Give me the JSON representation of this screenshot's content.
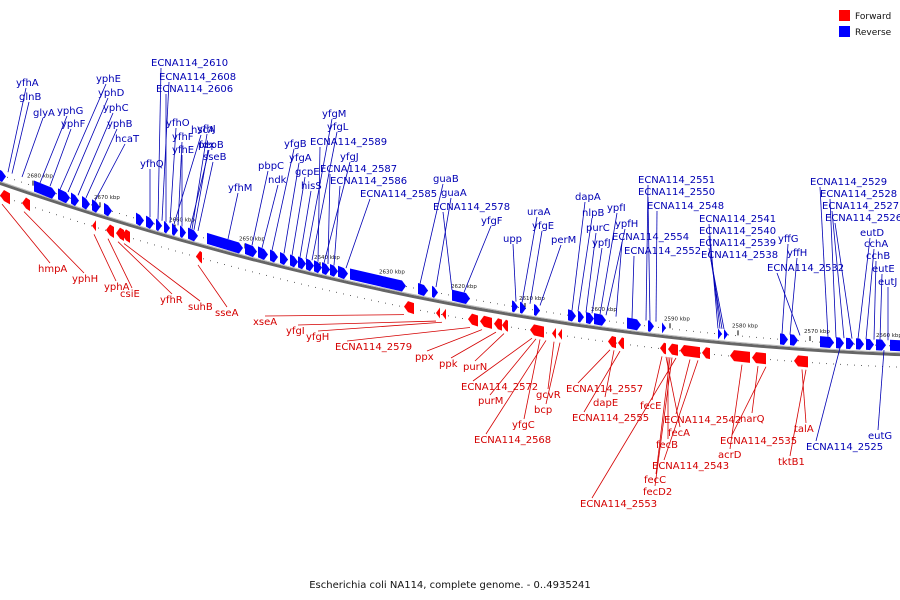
{
  "caption": "Escherichia coli NA114, complete genome. - 0..4935241",
  "legend": {
    "forward": "Forward",
    "reverse": "Reverse"
  },
  "colors": {
    "forward": "#ff0000",
    "reverse": "#0000ff",
    "forward_label": "#d40000",
    "reverse_label": "#0000b4",
    "backbone": "#666666"
  },
  "ticks": [
    "2680 kbp",
    "2670 kbp",
    "2660 kbp",
    "2650 kbp",
    "2640 kbp",
    "2630 kbp",
    "2620 kbp",
    "2610 kbp",
    "2600 kbp",
    "2590 kbp",
    "2580 kbp",
    "2570 kbp",
    "2560 kbp"
  ],
  "reverse_genes": [
    "yfhA",
    "glnB",
    "glyA",
    "yphG",
    "yphF",
    "yphE",
    "yphD",
    "yphC",
    "yphB",
    "hcaT",
    "ECNA114_2610",
    "ECNA114_2608",
    "ECNA114_2606",
    "yfhQ",
    "yfhO",
    "hscA",
    "yfhF",
    "yfhE",
    "fdx",
    "yfhJ",
    "pepB",
    "sseB",
    "yfhM",
    "pbpC",
    "ndk",
    "yfgB",
    "yfgA",
    "gcpE",
    "hisS",
    "yfgM",
    "yfgL",
    "ECNA114_2589",
    "yfgJ",
    "ECNA114_2587",
    "ECNA114_2586",
    "ECNA114_2585",
    "guaB",
    "guaA",
    "ECNA114_2578",
    "yfgF",
    "upp",
    "uraA",
    "yfgE",
    "perM",
    "dapA",
    "nlpB",
    "purC",
    "ypfJ",
    "ypfI",
    "ypfH",
    "ECNA114_2554",
    "ECNA114_2552",
    "ECNA114_2551",
    "ECNA114_2550",
    "ECNA114_2548",
    "ECNA114_2541",
    "ECNA114_2540",
    "ECNA114_2539",
    "ECNA114_2538",
    "yffG",
    "yffH",
    "ECNA114_2532",
    "ECNA114_2529",
    "ECNA114_2528",
    "ECNA114_2527",
    "ECNA114_2526",
    "eutD",
    "cchA",
    "cchB",
    "eutE",
    "eutJ",
    "eutG",
    "ECNA114_2525"
  ],
  "forward_genes": [
    "hmpA",
    "yphH",
    "yphA",
    "csiE",
    "yfhR",
    "suhB",
    "sseA",
    "xseA",
    "yfgI",
    "yfgH",
    "ECNA114_2579",
    "ppx",
    "ppk",
    "purN",
    "ECNA114_2572",
    "purM",
    "gcvR",
    "bcp",
    "yfgC",
    "ECNA114_2568",
    "ECNA114_2557",
    "dapE",
    "ECNA114_2555",
    "fecE",
    "fecA",
    "fecB",
    "fecC",
    "fecD2",
    "ECNA114_2553",
    "ECNA114_2542",
    "ECNA114_2543",
    "narQ",
    "ECNA114_2535",
    "acrD",
    "talA",
    "tktB1"
  ]
}
